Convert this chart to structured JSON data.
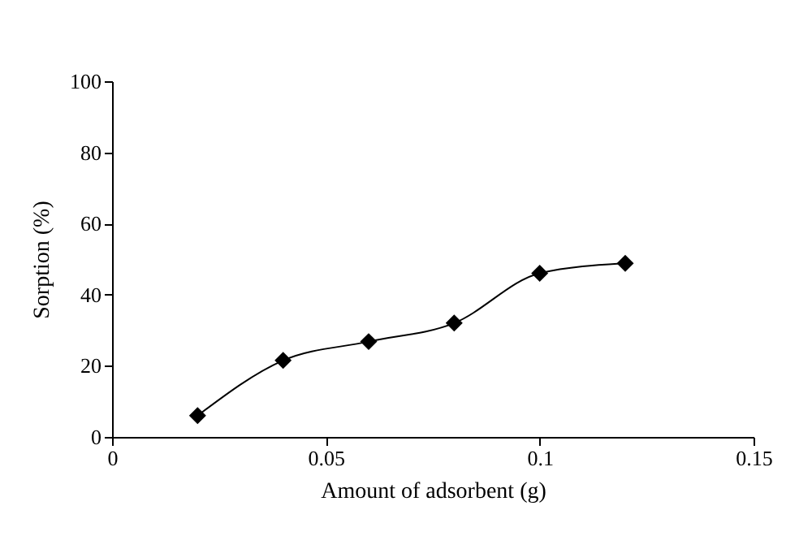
{
  "chart_data": {
    "type": "line",
    "xlabel": "Amount of adsorbent (g)",
    "ylabel": "Sorption (%)",
    "x": [
      0.02,
      0.04,
      0.06,
      0.08,
      0.1,
      0.12
    ],
    "series": [
      {
        "color": "#000000",
        "values": [
          6,
          21.5,
          26.8,
          32,
          46,
          48.8
        ]
      }
    ],
    "xlim": [
      0,
      0.15
    ],
    "xticks": [
      0,
      0.05,
      0.1,
      0.15
    ],
    "ylim": [
      0,
      100
    ],
    "yticks": [
      0,
      20,
      40,
      60,
      80,
      100
    ],
    "grid": false,
    "legend": false,
    "marker": "diamond",
    "line_style": "solid"
  }
}
